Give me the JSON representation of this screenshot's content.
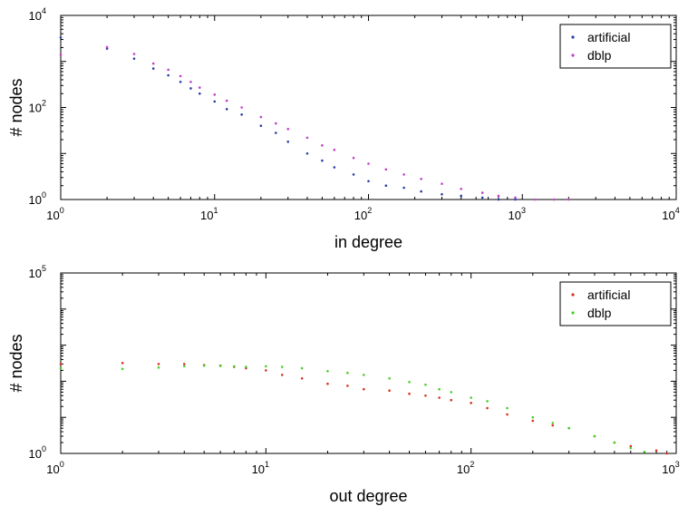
{
  "chart_data": [
    {
      "type": "scatter",
      "title": "",
      "xlabel": "in degree",
      "ylabel": "# nodes",
      "xscale": "log",
      "yscale": "log",
      "xlim": [
        1,
        10000
      ],
      "ylim": [
        1,
        10000
      ],
      "x_ticks": [
        {
          "base": "10",
          "exp": "0"
        },
        {
          "base": "10",
          "exp": "1"
        },
        {
          "base": "10",
          "exp": "2"
        },
        {
          "base": "10",
          "exp": "3"
        },
        {
          "base": "10",
          "exp": "4"
        }
      ],
      "y_ticks": [
        {
          "base": "10",
          "exp": "0"
        },
        {
          "base": "10",
          "exp": "2"
        },
        {
          "base": "10",
          "exp": "4"
        }
      ],
      "legend_position": "top-right",
      "series": [
        {
          "name": "artificial",
          "color": "#2c3da6",
          "x": [
            1,
            2,
            3,
            4,
            5,
            6,
            7,
            8,
            10,
            12,
            15,
            20,
            25,
            30,
            40,
            50,
            60,
            80,
            100,
            130,
            170,
            220,
            300,
            400,
            550,
            700,
            900
          ],
          "y": [
            3300,
            1900,
            1150,
            700,
            500,
            360,
            260,
            200,
            135,
            92,
            70,
            40,
            28,
            18,
            10,
            7,
            5,
            3.5,
            2.5,
            2,
            1.8,
            1.5,
            1.3,
            1.2,
            1.1,
            1,
            1
          ]
        },
        {
          "name": "dblp",
          "color": "#c13fc7",
          "x": [
            1,
            2,
            3,
            4,
            5,
            6,
            7,
            8,
            10,
            12,
            15,
            20,
            25,
            30,
            40,
            50,
            60,
            80,
            100,
            130,
            170,
            220,
            300,
            400,
            550,
            700,
            900,
            1200,
            1600,
            2000
          ],
          "y": [
            1400,
            2050,
            1450,
            900,
            660,
            480,
            360,
            270,
            190,
            140,
            100,
            62,
            45,
            34,
            22,
            15,
            12,
            8,
            6,
            4.5,
            3.5,
            2.8,
            2.2,
            1.7,
            1.4,
            1.2,
            1.1,
            1,
            1,
            1
          ]
        }
      ]
    },
    {
      "type": "scatter",
      "title": "",
      "xlabel": "out degree",
      "ylabel": "# nodes",
      "xscale": "log",
      "yscale": "log",
      "xlim": [
        1,
        1000
      ],
      "ylim": [
        1,
        100000
      ],
      "x_ticks": [
        {
          "base": "10",
          "exp": "0"
        },
        {
          "base": "10",
          "exp": "1"
        },
        {
          "base": "10",
          "exp": "2"
        },
        {
          "base": "10",
          "exp": "3"
        }
      ],
      "y_ticks": [
        {
          "base": "10",
          "exp": "0"
        },
        {
          "base": "10",
          "exp": "5"
        }
      ],
      "legend_position": "top-right",
      "series": [
        {
          "name": "artificial",
          "color": "#d9311f",
          "x": [
            1,
            2,
            3,
            4,
            5,
            6,
            7,
            8,
            10,
            12,
            15,
            20,
            25,
            30,
            40,
            50,
            60,
            70,
            80,
            100,
            120,
            150,
            200,
            250,
            300,
            400,
            500,
            600,
            800,
            900
          ],
          "y": [
            300,
            320,
            300,
            300,
            280,
            270,
            250,
            230,
            200,
            150,
            120,
            85,
            75,
            60,
            55,
            45,
            40,
            35,
            30,
            25,
            18,
            12,
            8,
            6,
            5,
            3,
            2,
            1.6,
            1.2,
            1
          ]
        },
        {
          "name": "dblp",
          "color": "#45d024",
          "x": [
            1,
            2,
            3,
            4,
            5,
            6,
            7,
            8,
            10,
            12,
            15,
            20,
            25,
            30,
            40,
            50,
            60,
            70,
            80,
            100,
            120,
            150,
            200,
            250,
            300,
            400,
            500,
            600,
            700
          ],
          "y": [
            230,
            220,
            240,
            260,
            270,
            265,
            260,
            250,
            260,
            250,
            230,
            190,
            170,
            150,
            120,
            95,
            80,
            60,
            50,
            35,
            28,
            18,
            10,
            7,
            5,
            3,
            2,
            1.4,
            1.1
          ]
        }
      ]
    }
  ]
}
